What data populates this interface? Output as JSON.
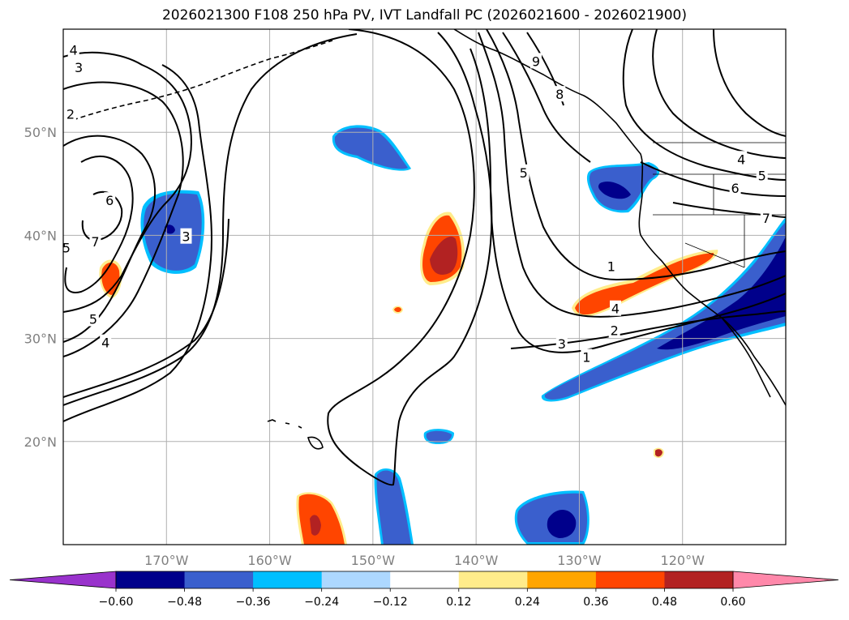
{
  "chart_data": {
    "type": "heatmap",
    "title": "2026021300 F108 250 hPa PV, IVT Landfall PC (2026021600 - 2026021900)",
    "projection": "PlateCarree",
    "lon_range": [
      -180,
      -110
    ],
    "lat_range": [
      10,
      60
    ],
    "x_ticks": [
      -170,
      -160,
      -150,
      -140,
      -130,
      -120
    ],
    "x_tick_labels": [
      "170°W",
      "160°W",
      "150°W",
      "140°W",
      "130°W",
      "120°W"
    ],
    "y_ticks": [
      20,
      30,
      40,
      50
    ],
    "y_tick_labels": [
      "20°N",
      "30°N",
      "40°N",
      "50°N"
    ],
    "grid": true,
    "colorbar": {
      "orientation": "horizontal",
      "extend": "both",
      "levels": [
        -0.6,
        -0.48,
        -0.36,
        -0.24,
        -0.12,
        0.12,
        0.24,
        0.36,
        0.48,
        0.6
      ],
      "tick_labels": [
        "−0.60",
        "−0.48",
        "−0.36",
        "−0.24",
        "−0.12",
        "0.12",
        "0.24",
        "0.36",
        "0.48",
        "0.60"
      ],
      "colors": [
        "#9932cc",
        "#00008b",
        "#3a5fcd",
        "#00bfff",
        "#add8ff",
        "#ffffff",
        "#ffec8b",
        "#ffa500",
        "#ff4500",
        "#b22222",
        "#ff88aa"
      ]
    },
    "pv_contour_labels": [
      {
        "text": "4",
        "lon": -179.0,
        "lat": 58.0
      },
      {
        "text": "3",
        "lon": -178.5,
        "lat": 56.3
      },
      {
        "text": "2",
        "lon": -179.3,
        "lat": 51.8
      },
      {
        "text": "6",
        "lon": -175.5,
        "lat": 43.4
      },
      {
        "text": "7",
        "lon": -176.9,
        "lat": 39.4
      },
      {
        "text": "5",
        "lon": -179.7,
        "lat": 38.8
      },
      {
        "text": "3",
        "lon": -168.1,
        "lat": 39.9
      },
      {
        "text": "5",
        "lon": -177.1,
        "lat": 31.9
      },
      {
        "text": "4",
        "lon": -175.9,
        "lat": 29.6
      },
      {
        "text": "9",
        "lon": -134.2,
        "lat": 56.9
      },
      {
        "text": "8",
        "lon": -131.9,
        "lat": 53.7
      },
      {
        "text": "5",
        "lon": -135.4,
        "lat": 46.1
      },
      {
        "text": "1",
        "lon": -126.9,
        "lat": 37.0
      },
      {
        "text": "4",
        "lon": -126.5,
        "lat": 32.9
      },
      {
        "text": "2",
        "lon": -126.6,
        "lat": 30.8
      },
      {
        "text": "3",
        "lon": -131.7,
        "lat": 29.5
      },
      {
        "text": "1",
        "lon": -129.3,
        "lat": 28.2
      },
      {
        "text": "4",
        "lon": -114.3,
        "lat": 47.4
      },
      {
        "text": "5",
        "lon": -112.3,
        "lat": 45.8
      },
      {
        "text": "6",
        "lon": -114.9,
        "lat": 44.6
      },
      {
        "text": "7",
        "lon": -111.9,
        "lat": 41.7
      }
    ]
  }
}
